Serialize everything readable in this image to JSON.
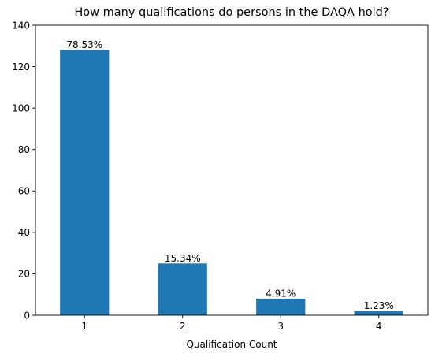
{
  "chart_data": {
    "type": "bar",
    "title": "How many qualifications do persons in the DAQA hold?",
    "xlabel": "Qualification Count",
    "ylabel": "",
    "categories": [
      "1",
      "2",
      "3",
      "4"
    ],
    "values": [
      128,
      25,
      8,
      2
    ],
    "data_labels": [
      "78.53%",
      "15.34%",
      "4.91%",
      "1.23%"
    ],
    "ylim": [
      0,
      140
    ],
    "yticks": [
      0,
      20,
      40,
      60,
      80,
      100,
      120,
      140
    ],
    "grid": false,
    "legend": "none",
    "bar_color": "#1f77b4"
  }
}
